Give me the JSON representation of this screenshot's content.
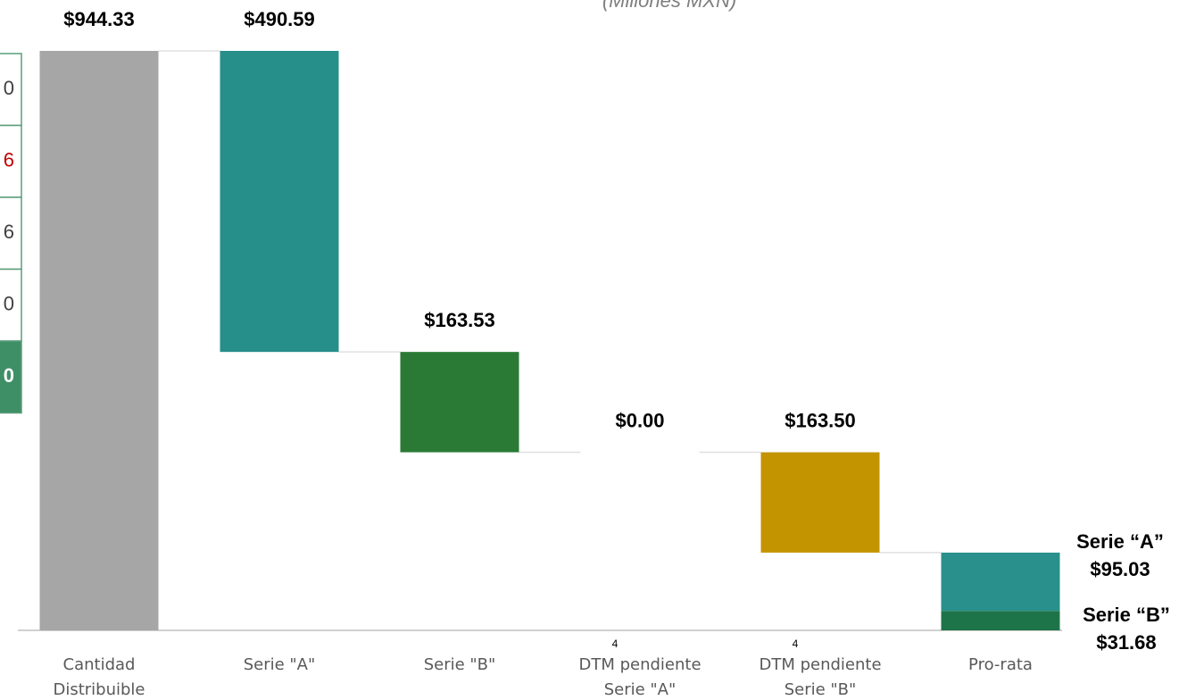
{
  "side_table": {
    "cells": [
      "0",
      "6",
      "6",
      "0",
      "0"
    ]
  },
  "chart_data": {
    "type": "waterfall",
    "title": "(Millones MXN)",
    "categories": [
      "Cantidad\nDistribuible",
      "Serie \"A\"",
      "Serie \"B\"",
      "DTM pendiente\nSerie \"A\"",
      "DTM pendiente\nSerie \"B\"",
      "Pro-rata"
    ],
    "category_notes": [
      null,
      null,
      null,
      "4",
      "4",
      null
    ],
    "values": [
      944.33,
      490.59,
      163.53,
      0.0,
      163.5,
      null
    ],
    "value_labels": [
      "$944.33",
      "$490.59",
      "$163.53",
      "$0.00",
      "$163.50",
      null
    ],
    "colors": [
      "#a6a6a6",
      "#268f8a",
      "#2a7a36",
      "#a6a6a6",
      "#c39400",
      null
    ],
    "remainder": {
      "series": [
        {
          "name": "Serie “A”",
          "value": 95.03,
          "value_label": "$95.03",
          "color": "#29908b"
        },
        {
          "name": "Serie “B”",
          "value": 31.68,
          "value_label": "$31.68",
          "color": "#1e7449"
        }
      ]
    }
  }
}
